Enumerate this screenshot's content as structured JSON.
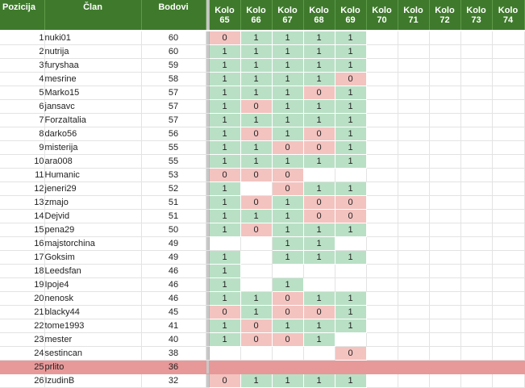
{
  "headers": {
    "position": "Pozicija",
    "member": "Član",
    "points": "Bodovi",
    "round_prefix": "Kolo",
    "rounds": [
      "65",
      "66",
      "67",
      "68",
      "69",
      "70",
      "71",
      "72",
      "73",
      "74"
    ]
  },
  "rows": [
    {
      "pos": "1",
      "name": "nuki01",
      "points": "60",
      "rounds": [
        "0",
        "1",
        "1",
        "1",
        "1",
        "",
        "",
        "",
        "",
        ""
      ]
    },
    {
      "pos": "2",
      "name": "nutrija",
      "points": "60",
      "rounds": [
        "1",
        "1",
        "1",
        "1",
        "1",
        "",
        "",
        "",
        "",
        ""
      ]
    },
    {
      "pos": "3",
      "name": "furyshaa",
      "points": "59",
      "rounds": [
        "1",
        "1",
        "1",
        "1",
        "1",
        "",
        "",
        "",
        "",
        ""
      ]
    },
    {
      "pos": "4",
      "name": "mesrine",
      "points": "58",
      "rounds": [
        "1",
        "1",
        "1",
        "1",
        "0",
        "",
        "",
        "",
        "",
        ""
      ]
    },
    {
      "pos": "5",
      "name": "Marko15",
      "points": "57",
      "rounds": [
        "1",
        "1",
        "1",
        "0",
        "1",
        "",
        "",
        "",
        "",
        ""
      ]
    },
    {
      "pos": "6",
      "name": "jansavc",
      "points": "57",
      "rounds": [
        "1",
        "0",
        "1",
        "1",
        "1",
        "",
        "",
        "",
        "",
        ""
      ]
    },
    {
      "pos": "7",
      "name": "ForzaItalia",
      "points": "57",
      "rounds": [
        "1",
        "1",
        "1",
        "1",
        "1",
        "",
        "",
        "",
        "",
        ""
      ]
    },
    {
      "pos": "8",
      "name": "darko56",
      "points": "56",
      "rounds": [
        "1",
        "0",
        "1",
        "0",
        "1",
        "",
        "",
        "",
        "",
        ""
      ]
    },
    {
      "pos": "9",
      "name": "misterija",
      "points": "55",
      "rounds": [
        "1",
        "1",
        "0",
        "0",
        "1",
        "",
        "",
        "",
        "",
        ""
      ]
    },
    {
      "pos": "10",
      "name": "ara008",
      "points": "55",
      "rounds": [
        "1",
        "1",
        "1",
        "1",
        "1",
        "",
        "",
        "",
        "",
        ""
      ]
    },
    {
      "pos": "11",
      "name": "Humanic",
      "points": "53",
      "rounds": [
        "0",
        "0",
        "0",
        "",
        "",
        "",
        "",
        "",
        "",
        ""
      ]
    },
    {
      "pos": "12",
      "name": "jeneri29",
      "points": "52",
      "rounds": [
        "1",
        "",
        "0",
        "1",
        "1",
        "",
        "",
        "",
        "",
        ""
      ]
    },
    {
      "pos": "13",
      "name": "zmajo",
      "points": "51",
      "rounds": [
        "1",
        "0",
        "1",
        "0",
        "0",
        "",
        "",
        "",
        "",
        ""
      ]
    },
    {
      "pos": "14",
      "name": "Dejvid",
      "points": "51",
      "rounds": [
        "1",
        "1",
        "1",
        "0",
        "0",
        "",
        "",
        "",
        "",
        ""
      ]
    },
    {
      "pos": "15",
      "name": "pena29",
      "points": "50",
      "rounds": [
        "1",
        "0",
        "1",
        "1",
        "1",
        "",
        "",
        "",
        "",
        ""
      ]
    },
    {
      "pos": "16",
      "name": "majstorchina",
      "points": "49",
      "rounds": [
        "",
        "",
        "1",
        "1",
        "",
        "",
        "",
        "",
        "",
        ""
      ]
    },
    {
      "pos": "17",
      "name": "Goksim",
      "points": "49",
      "rounds": [
        "1",
        "",
        "1",
        "1",
        "1",
        "",
        "",
        "",
        "",
        ""
      ]
    },
    {
      "pos": "18",
      "name": "Leedsfan",
      "points": "46",
      "rounds": [
        "1",
        "",
        "",
        "",
        "",
        "",
        "",
        "",
        "",
        ""
      ]
    },
    {
      "pos": "19",
      "name": "Ipoje4",
      "points": "46",
      "rounds": [
        "1",
        "",
        "1",
        "",
        "",
        "",
        "",
        "",
        "",
        ""
      ]
    },
    {
      "pos": "20",
      "name": "nenosk",
      "points": "46",
      "rounds": [
        "1",
        "1",
        "0",
        "1",
        "1",
        "",
        "",
        "",
        "",
        ""
      ]
    },
    {
      "pos": "21",
      "name": "blacky44",
      "points": "45",
      "rounds": [
        "0",
        "1",
        "0",
        "0",
        "1",
        "",
        "",
        "",
        "",
        ""
      ]
    },
    {
      "pos": "22",
      "name": "tome1993",
      "points": "41",
      "rounds": [
        "1",
        "0",
        "1",
        "1",
        "1",
        "",
        "",
        "",
        "",
        ""
      ]
    },
    {
      "pos": "23",
      "name": "mester",
      "points": "40",
      "rounds": [
        "1",
        "0",
        "0",
        "1",
        "",
        "",
        "",
        "",
        "",
        ""
      ]
    },
    {
      "pos": "24",
      "name": "sestincan",
      "points": "38",
      "rounds": [
        "",
        "",
        "",
        "",
        "0",
        "",
        "",
        "",
        "",
        ""
      ]
    },
    {
      "pos": "25",
      "name": "prlito",
      "points": "36",
      "rounds": [
        "",
        "",
        "",
        "",
        "",
        "",
        "",
        "",
        "",
        ""
      ],
      "highlight": true
    },
    {
      "pos": "26",
      "name": "IzudinB",
      "points": "32",
      "rounds": [
        "0",
        "1",
        "1",
        "1",
        "1",
        "",
        "",
        "",
        "",
        ""
      ]
    }
  ],
  "colors": {
    "header_bg": "#3f7a2c",
    "win": "#b9e0c5",
    "loss": "#f3c3c0",
    "highlight_row": "#e79898"
  }
}
